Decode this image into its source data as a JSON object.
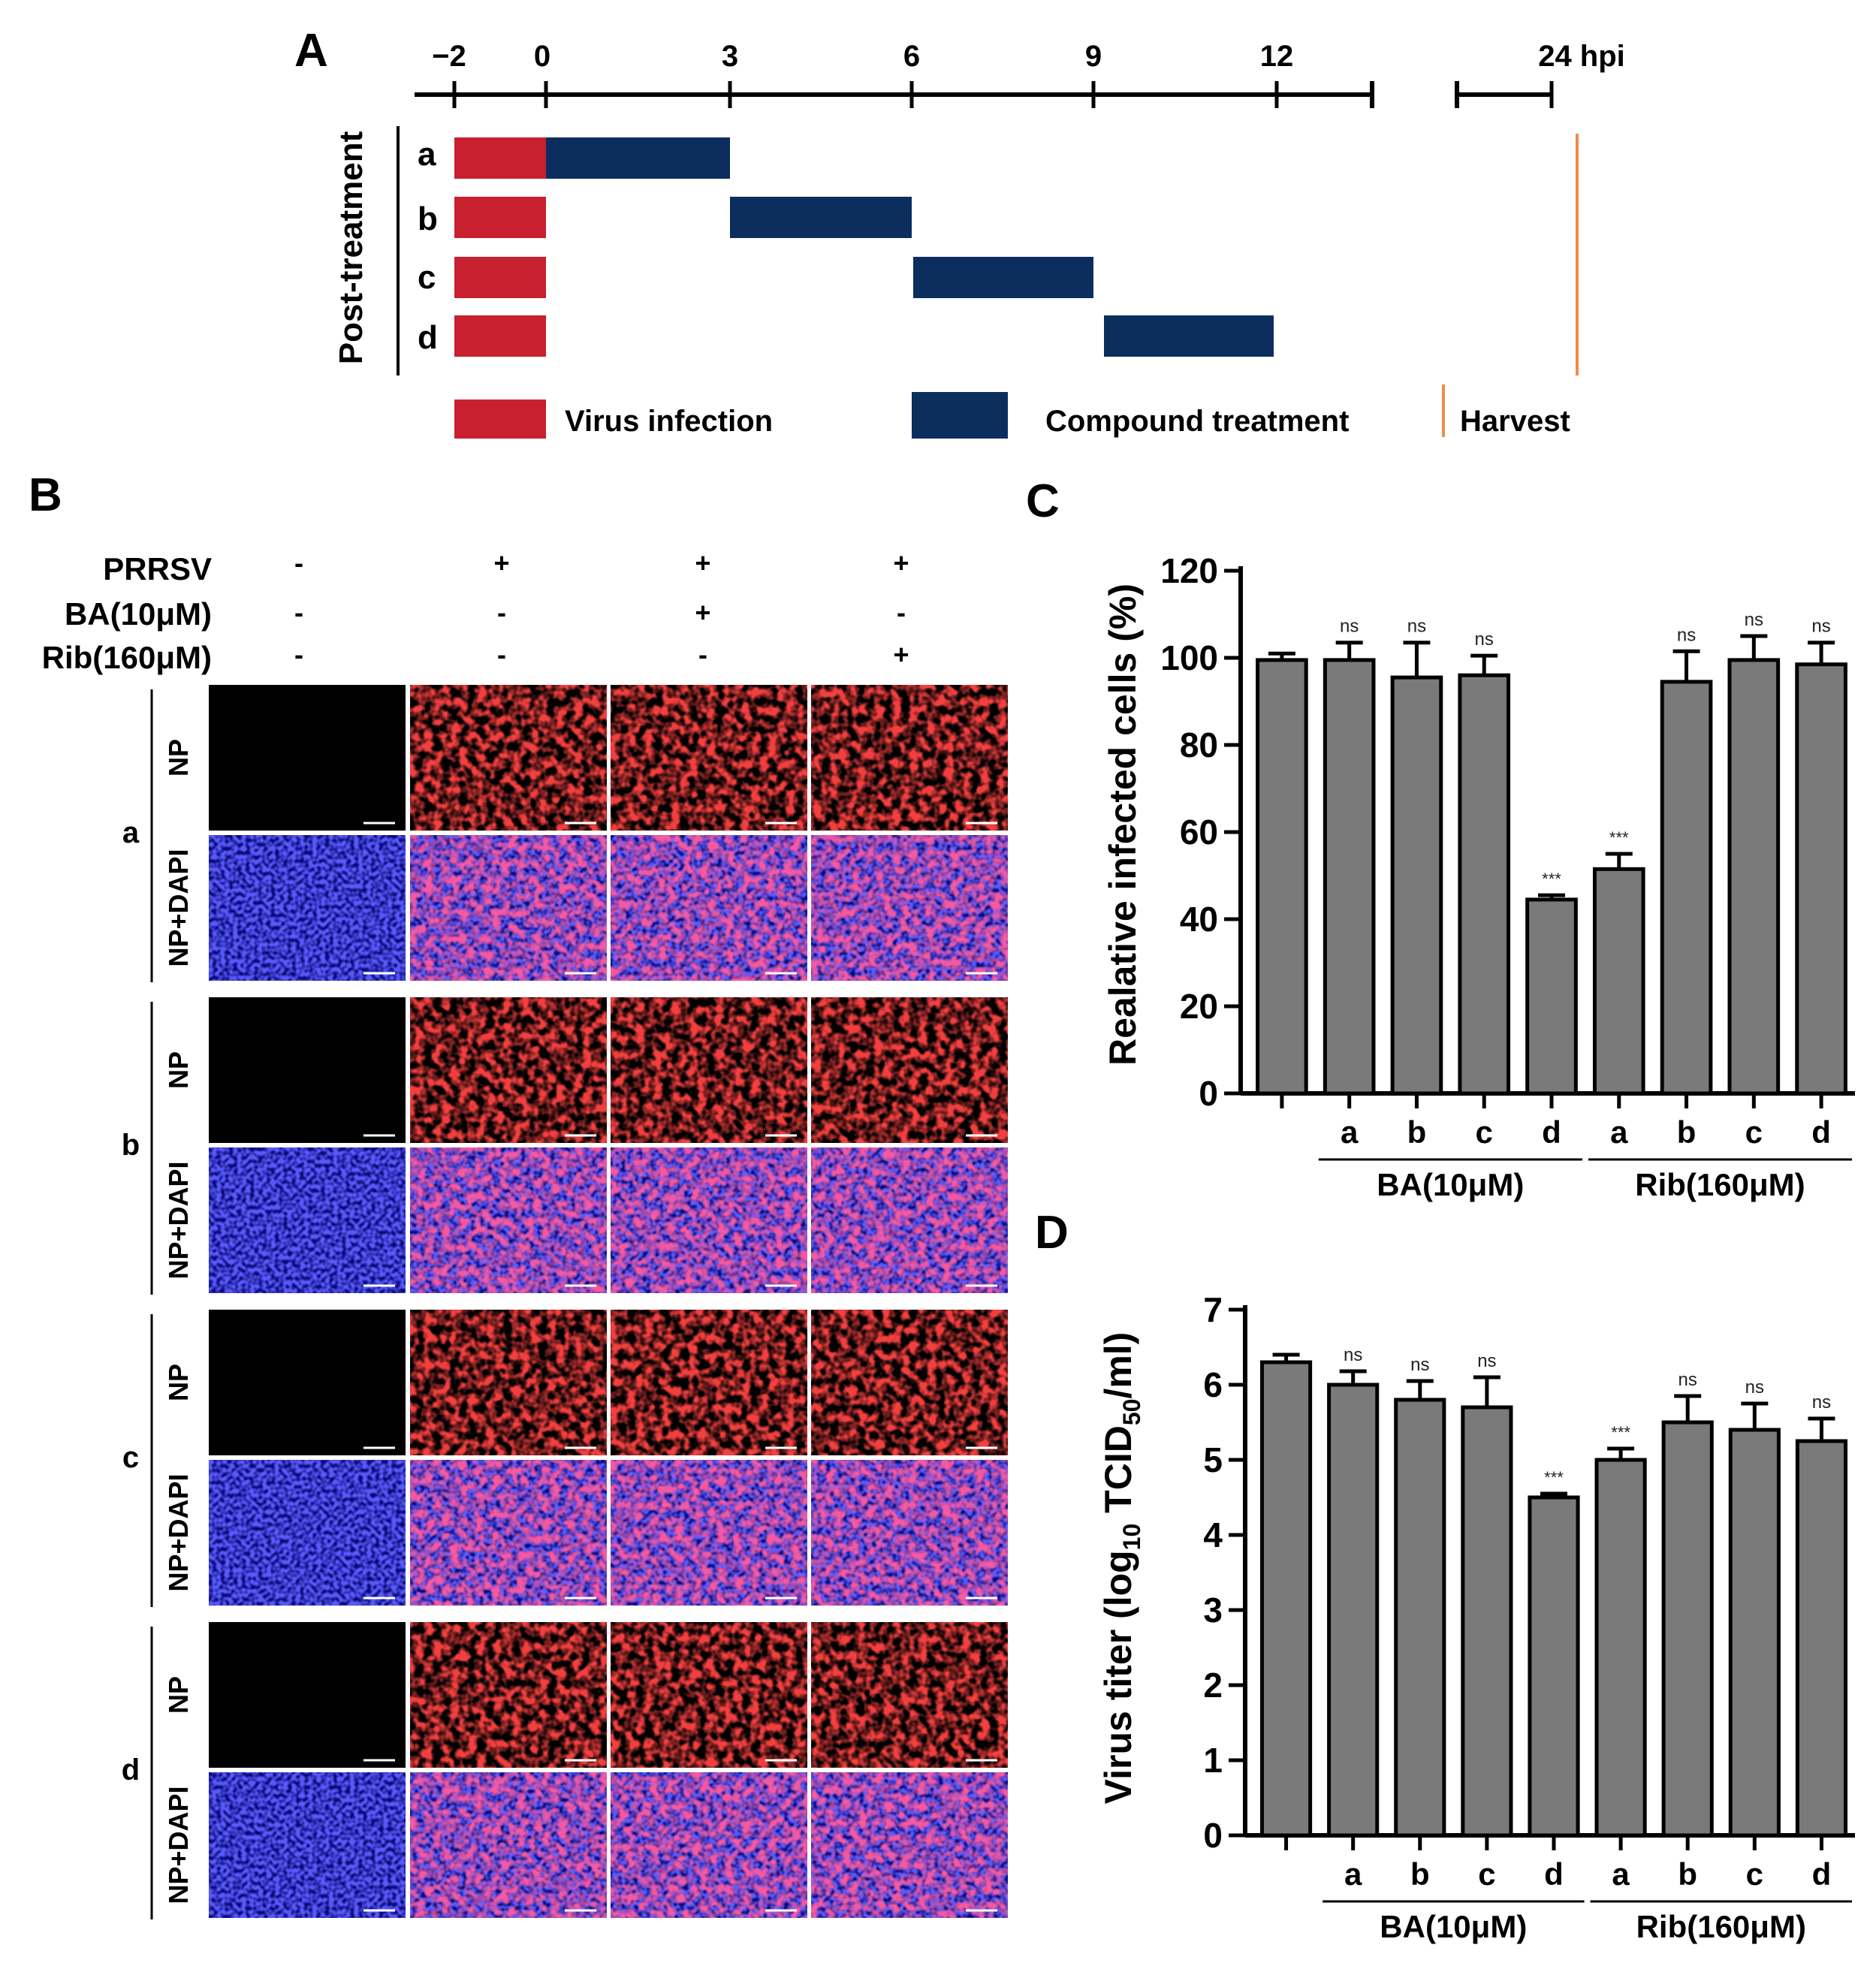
{
  "colors": {
    "virus": "#c8202f",
    "compound": "#0b2e5e",
    "harvest": "#f08a4b",
    "bar": "#7a7a7a",
    "np_red": "#e41414",
    "dapi_blue": "#1a1adf"
  },
  "panel_a": {
    "letter": "A",
    "axis_ticks": [
      "−2",
      "0",
      "3",
      "6",
      "9",
      "12",
      "24 hpi"
    ],
    "side_label": "Post-treatment",
    "rows": [
      {
        "label": "a",
        "virus": [
          -2,
          0
        ],
        "compound": [
          0,
          3
        ]
      },
      {
        "label": "b",
        "virus": [
          -2,
          0
        ],
        "compound": [
          3,
          6
        ]
      },
      {
        "label": "c",
        "virus": [
          -2,
          0
        ],
        "compound": [
          6,
          9
        ]
      },
      {
        "label": "d",
        "virus": [
          -2,
          0
        ],
        "compound": [
          9,
          12
        ]
      }
    ],
    "harvest_hpi": 24,
    "legend": {
      "virus": "Virus infection",
      "compound": "Compound treatment",
      "harvest": "Harvest"
    }
  },
  "panel_b": {
    "letter": "B",
    "condition_labels": [
      "PRRSV",
      "BA(10μM)",
      "Rib(160μM)"
    ],
    "conditions": [
      [
        "-",
        "+",
        "+",
        "+"
      ],
      [
        "-",
        "-",
        "+",
        "-"
      ],
      [
        "-",
        "-",
        "-",
        "+"
      ]
    ],
    "groups": [
      "a",
      "b",
      "c",
      "d"
    ],
    "channels": [
      "NP",
      "NP+DAPI"
    ]
  },
  "chart_data": [
    {
      "panel": "C",
      "type": "bar",
      "ylabel": "Realative infected cells  (%)",
      "ylim": [
        0,
        120
      ],
      "yticks": [
        "0",
        "20",
        "40",
        "60",
        "80",
        "100",
        "120"
      ],
      "categories": [
        "",
        "a",
        "b",
        "c",
        "d",
        "a",
        "b",
        "c",
        "d"
      ],
      "values": [
        99.5,
        99.5,
        95.5,
        96,
        44.5,
        51.5,
        94.5,
        99.5,
        98.5
      ],
      "errors": [
        1.5,
        4,
        8,
        4.5,
        1,
        3.5,
        7,
        5.5,
        5
      ],
      "significance": [
        "",
        "ns",
        "ns",
        "ns",
        "***",
        "***",
        "ns",
        "ns",
        "ns"
      ],
      "groups": [
        {
          "label": "BA(10μM)",
          "from": 1,
          "to": 4
        },
        {
          "label": "Rib(160μM)",
          "from": 5,
          "to": 8
        }
      ]
    },
    {
      "panel": "D",
      "type": "bar",
      "ylabel_main": "Virus titer  (log",
      "ylabel_sub": "10",
      "ylabel_tail": " TCID",
      "ylabel_sub2": "50",
      "ylabel_end": "/ml)",
      "ylim": [
        0,
        7
      ],
      "yticks": [
        "0",
        "1",
        "2",
        "3",
        "4",
        "5",
        "6",
        "7"
      ],
      "categories": [
        "",
        "a",
        "b",
        "c",
        "d",
        "a",
        "b",
        "c",
        "d"
      ],
      "values": [
        6.3,
        6.0,
        5.8,
        5.7,
        4.5,
        5.0,
        5.5,
        5.4,
        5.25
      ],
      "errors": [
        0.1,
        0.18,
        0.25,
        0.4,
        0.05,
        0.15,
        0.35,
        0.35,
        0.3
      ],
      "significance": [
        "",
        "ns",
        "ns",
        "ns",
        "***",
        "***",
        "ns",
        "ns",
        "ns"
      ],
      "groups": [
        {
          "label": "BA(10μM)",
          "from": 1,
          "to": 4
        },
        {
          "label": "Rib(160μM)",
          "from": 5,
          "to": 8
        }
      ]
    }
  ]
}
